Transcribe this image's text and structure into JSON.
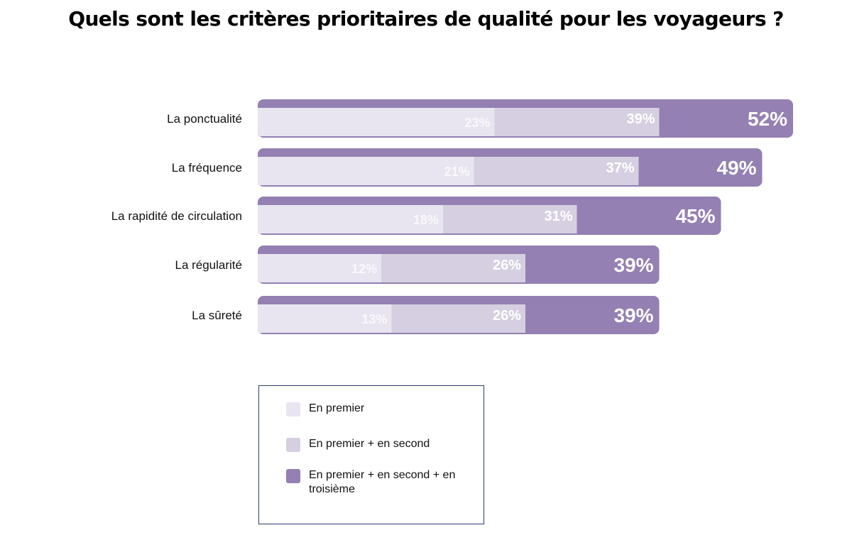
{
  "chart_data": {
    "type": "bar",
    "orientation": "horizontal",
    "title": "Quels sont les critères prioritaires de qualité pour les voyageurs ?",
    "categories": [
      "La ponctualité",
      "La fréquence",
      "La rapidité de circulation",
      "La régularité",
      "La sûreté"
    ],
    "series": [
      {
        "name": "En premier",
        "values": [
          23,
          21,
          18,
          12,
          13
        ],
        "labels": [
          "23%",
          "21%",
          "18%",
          "12%",
          "13%"
        ],
        "color": "#e9e5f0"
      },
      {
        "name": "En premier + en second",
        "values": [
          39,
          37,
          31,
          26,
          26
        ],
        "labels": [
          "39%",
          "37%",
          "31%",
          "26%",
          "26%"
        ],
        "color": "#d6cfe1"
      },
      {
        "name": "En premier + en second + en troisième",
        "values": [
          52,
          49,
          45,
          39,
          39
        ],
        "labels": [
          "52%",
          "49%",
          "45%",
          "39%",
          "39%"
        ],
        "color": "#9480b2"
      }
    ],
    "xlim": [
      0,
      60
    ],
    "grid": false,
    "legend_position": "bottom"
  }
}
